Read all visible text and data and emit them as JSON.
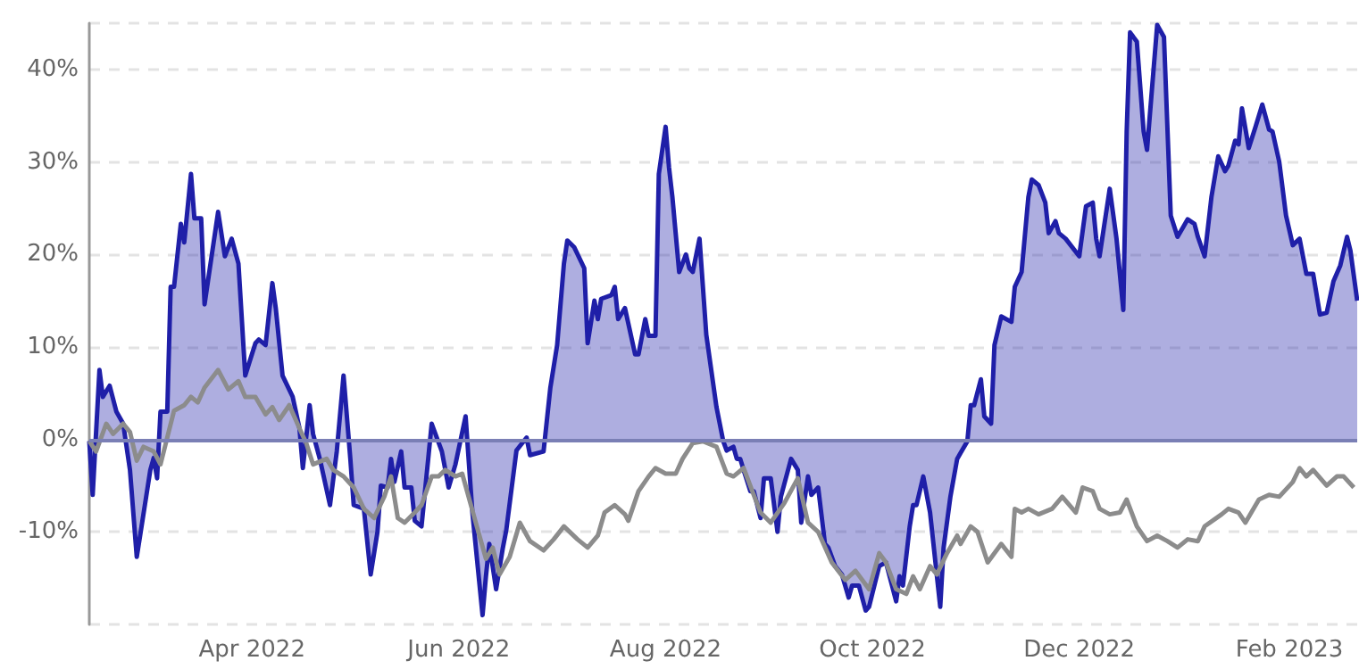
{
  "chart_data": {
    "type": "area",
    "xlim": [
      "2022-02-12",
      "2023-02-21"
    ],
    "xticks": [
      {
        "value": "2022-04-01",
        "label": "Apr 2022"
      },
      {
        "value": "2022-06-01",
        "label": "Jun 2022"
      },
      {
        "value": "2022-08-01",
        "label": "Aug 2022"
      },
      {
        "value": "2022-10-01",
        "label": "Oct 2022"
      },
      {
        "value": "2022-12-01",
        "label": "Dec 2022"
      },
      {
        "value": "2023-02-01",
        "label": "Feb 2023"
      }
    ],
    "ylim": [
      -20,
      45
    ],
    "yticks": [
      {
        "value": -20,
        "label": null
      },
      {
        "value": -10,
        "label": "-10%"
      },
      {
        "value": 0,
        "label": "0%"
      },
      {
        "value": 10,
        "label": "10%"
      },
      {
        "value": 20,
        "label": "20%"
      },
      {
        "value": 30,
        "label": "30%"
      },
      {
        "value": 40,
        "label": "40%"
      },
      {
        "value": 45,
        "label": null
      }
    ],
    "grid": "y",
    "ref_lines": [
      {
        "axis": "y",
        "value": 0,
        "color": "#7a7fb5"
      }
    ],
    "series": [
      {
        "color": "#1f1fa8",
        "x": [
          "2022-02-12",
          "2022-02-13",
          "2022-02-15",
          "2022-02-16",
          "2022-02-18",
          "2022-02-20",
          "2022-02-22",
          "2022-02-24",
          "2022-02-26",
          "2022-02-27",
          "2022-03-02",
          "2022-03-03",
          "2022-03-04",
          "2022-03-05",
          "2022-03-07",
          "2022-03-08",
          "2022-03-09",
          "2022-03-11",
          "2022-03-12",
          "2022-03-14",
          "2022-03-15",
          "2022-03-17",
          "2022-03-18",
          "2022-03-22",
          "2022-03-24",
          "2022-03-26",
          "2022-03-28",
          "2022-03-30",
          "2022-04-02",
          "2022-04-03",
          "2022-04-05",
          "2022-04-07",
          "2022-04-08",
          "2022-04-10",
          "2022-04-13",
          "2022-04-15",
          "2022-04-16",
          "2022-04-18",
          "2022-04-19",
          "2022-04-21",
          "2022-04-24",
          "2022-04-26",
          "2022-04-28",
          "2022-04-30",
          "2022-05-01",
          "2022-05-04",
          "2022-05-06",
          "2022-05-08",
          "2022-05-09",
          "2022-05-11",
          "2022-05-12",
          "2022-05-13",
          "2022-05-15",
          "2022-05-16",
          "2022-05-18",
          "2022-05-19",
          "2022-05-21",
          "2022-05-24",
          "2022-05-27",
          "2022-05-29",
          "2022-05-31",
          "2022-06-03",
          "2022-06-05",
          "2022-06-08",
          "2022-06-09",
          "2022-06-10",
          "2022-06-12",
          "2022-06-14",
          "2022-06-15",
          "2022-06-18",
          "2022-06-21",
          "2022-06-22",
          "2022-06-26",
          "2022-06-28",
          "2022-06-30",
          "2022-07-02",
          "2022-07-03",
          "2022-07-05",
          "2022-07-08",
          "2022-07-09",
          "2022-07-11",
          "2022-07-12",
          "2022-07-13",
          "2022-07-16",
          "2022-07-17",
          "2022-07-18",
          "2022-07-20",
          "2022-07-23",
          "2022-07-24",
          "2022-07-26",
          "2022-07-27",
          "2022-07-29",
          "2022-07-30",
          "2022-08-01",
          "2022-08-02",
          "2022-08-03",
          "2022-08-05",
          "2022-08-07",
          "2022-08-08",
          "2022-08-09",
          "2022-08-11",
          "2022-08-13",
          "2022-08-16",
          "2022-08-18",
          "2022-08-19",
          "2022-08-21",
          "2022-08-22",
          "2022-08-23",
          "2022-08-24",
          "2022-08-26",
          "2022-08-27",
          "2022-08-29",
          "2022-08-30",
          "2022-09-01",
          "2022-09-03",
          "2022-09-04",
          "2022-09-07",
          "2022-09-09",
          "2022-09-10",
          "2022-09-12",
          "2022-09-13",
          "2022-09-15",
          "2022-09-17",
          "2022-09-18",
          "2022-09-20",
          "2022-09-22",
          "2022-09-24",
          "2022-09-25",
          "2022-09-27",
          "2022-09-29",
          "2022-09-30",
          "2022-10-03",
          "2022-10-05",
          "2022-10-08",
          "2022-10-09",
          "2022-10-10",
          "2022-10-12",
          "2022-10-13",
          "2022-10-14",
          "2022-10-16",
          "2022-10-18",
          "2022-10-21",
          "2022-10-22",
          "2022-10-24",
          "2022-10-26",
          "2022-10-29",
          "2022-10-30",
          "2022-10-31",
          "2022-11-02",
          "2022-11-03",
          "2022-11-05",
          "2022-11-06",
          "2022-11-08",
          "2022-11-11",
          "2022-11-12",
          "2022-11-14",
          "2022-11-16",
          "2022-11-17",
          "2022-11-19",
          "2022-11-21",
          "2022-11-22",
          "2022-11-24",
          "2022-11-25",
          "2022-11-27",
          "2022-12-01",
          "2022-12-03",
          "2022-12-05",
          "2022-12-06",
          "2022-12-07",
          "2022-12-10",
          "2022-12-12",
          "2022-12-14",
          "2022-12-15",
          "2022-12-16",
          "2022-12-18",
          "2022-12-20",
          "2022-12-21",
          "2022-12-24",
          "2022-12-26",
          "2022-12-28",
          "2022-12-30",
          "2023-01-02",
          "2023-01-04",
          "2023-01-05",
          "2023-01-07",
          "2023-01-09",
          "2023-01-11",
          "2023-01-13",
          "2023-01-14",
          "2023-01-16",
          "2023-01-17",
          "2023-01-18",
          "2023-01-20",
          "2023-01-22",
          "2023-01-24",
          "2023-01-26",
          "2023-01-27",
          "2023-01-29",
          "2023-01-31",
          "2023-02-02",
          "2023-02-04",
          "2023-02-06",
          "2023-02-08",
          "2023-02-10",
          "2023-02-12",
          "2023-02-14",
          "2023-02-16",
          "2023-02-18",
          "2023-02-19",
          "2023-02-21"
        ],
        "values": [
          -0.2,
          -6,
          7.5,
          4.6,
          5.8,
          3,
          1.7,
          -3.3,
          -12.7,
          -10.4,
          -3.3,
          -2,
          -4.2,
          3,
          3,
          16.5,
          16.5,
          23.3,
          21.3,
          28.7,
          23.9,
          23.9,
          14.6,
          24.6,
          19.8,
          21.7,
          19,
          6.9,
          10.4,
          10.8,
          10.2,
          16.9,
          14.2,
          6.9,
          4.6,
          1.2,
          -3.1,
          3.7,
          0.6,
          -2.1,
          -7.1,
          -1.3,
          6.9,
          -2.1,
          -7.1,
          -7.5,
          -14.6,
          -10,
          -5,
          -5.2,
          -2.1,
          -4.6,
          -1.3,
          -5.2,
          -5.2,
          -8.8,
          -9.4,
          1.7,
          -1.3,
          -5.2,
          -2.7,
          2.5,
          -7.9,
          -19,
          -14.8,
          -11.3,
          -16.2,
          -11.7,
          -9.8,
          -1.2,
          0.2,
          -1.7,
          -1.3,
          5.6,
          10.2,
          19,
          21.5,
          20.8,
          18.5,
          10.4,
          15,
          13,
          15.2,
          15.6,
          16.5,
          13,
          14.2,
          9.2,
          9.2,
          13,
          11.2,
          11.2,
          28.7,
          33.8,
          29.4,
          26.2,
          18.1,
          20,
          18.5,
          18.1,
          21.7,
          11.3,
          3.5,
          -0.2,
          -1.2,
          -0.8,
          -2.1,
          -2.1,
          -3.3,
          -5.6,
          -5.6,
          -8.5,
          -4.2,
          -4.2,
          -10,
          -6.2,
          -2.1,
          -3.3,
          -9,
          -4,
          -6,
          -5.2,
          -11.3,
          -11.7,
          -13.7,
          -14.6,
          -17.1,
          -15.8,
          -15.8,
          -18.5,
          -18.1,
          -13.7,
          -13.3,
          -17.5,
          -14.8,
          -15.8,
          -9.4,
          -7.1,
          -7.1,
          -4,
          -7.9,
          -18.1,
          -11.7,
          -6.2,
          -2.1,
          -0.2,
          3.7,
          3.7,
          6.5,
          2.5,
          1.7,
          10.2,
          13.3,
          12.7,
          16.5,
          18.1,
          26.2,
          28.1,
          27.5,
          25.6,
          22.3,
          23.6,
          22.3,
          21.7,
          19.8,
          25.2,
          25.6,
          21.7,
          19.8,
          27.1,
          21.7,
          14,
          33.3,
          44,
          43,
          33.3,
          31.3,
          44.8,
          43.5,
          24.2,
          21.9,
          23.8,
          23.3,
          21.9,
          19.8,
          26.2,
          30.6,
          29,
          29.6,
          32.3,
          31.9,
          35.8,
          31.5,
          33.8,
          36.2,
          33.5,
          33.3,
          30,
          24.2,
          21,
          21.7,
          17.9,
          17.9,
          13.5,
          13.7,
          17.1,
          18.8,
          21.9,
          20.4,
          15
        ]
      },
      {
        "type": "line",
        "color": "#8c8c8c",
        "x": [
          "2022-02-12",
          "2022-02-14",
          "2022-02-17",
          "2022-02-19",
          "2022-02-22",
          "2022-02-24",
          "2022-02-26",
          "2022-02-28",
          "2022-03-03",
          "2022-03-05",
          "2022-03-09",
          "2022-03-12",
          "2022-03-14",
          "2022-03-16",
          "2022-03-18",
          "2022-03-22",
          "2022-03-25",
          "2022-03-28",
          "2022-03-30",
          "2022-04-02",
          "2022-04-05",
          "2022-04-07",
          "2022-04-09",
          "2022-04-12",
          "2022-04-15",
          "2022-04-17",
          "2022-04-19",
          "2022-04-23",
          "2022-04-25",
          "2022-04-28",
          "2022-05-01",
          "2022-05-04",
          "2022-05-07",
          "2022-05-10",
          "2022-05-12",
          "2022-05-14",
          "2022-05-16",
          "2022-05-19",
          "2022-05-21",
          "2022-05-24",
          "2022-05-26",
          "2022-05-28",
          "2022-05-31",
          "2022-06-02",
          "2022-06-06",
          "2022-06-09",
          "2022-06-11",
          "2022-06-13",
          "2022-06-16",
          "2022-06-19",
          "2022-06-22",
          "2022-06-26",
          "2022-06-29",
          "2022-07-02",
          "2022-07-06",
          "2022-07-09",
          "2022-07-12",
          "2022-07-14",
          "2022-07-17",
          "2022-07-20",
          "2022-07-21",
          "2022-07-24",
          "2022-07-27",
          "2022-07-29",
          "2022-08-01",
          "2022-08-04",
          "2022-08-06",
          "2022-08-09",
          "2022-08-12",
          "2022-08-16",
          "2022-08-19",
          "2022-08-21",
          "2022-08-24",
          "2022-08-27",
          "2022-08-29",
          "2022-09-01",
          "2022-09-05",
          "2022-09-09",
          "2022-09-12",
          "2022-09-15",
          "2022-09-19",
          "2022-09-23",
          "2022-09-26",
          "2022-09-30",
          "2022-10-03",
          "2022-10-05",
          "2022-10-08",
          "2022-10-11",
          "2022-10-13",
          "2022-10-15",
          "2022-10-18",
          "2022-10-20",
          "2022-10-23",
          "2022-10-26",
          "2022-10-27",
          "2022-10-30",
          "2022-11-01",
          "2022-11-04",
          "2022-11-08",
          "2022-11-11",
          "2022-11-12",
          "2022-11-14",
          "2022-11-16",
          "2022-11-19",
          "2022-11-23",
          "2022-11-26",
          "2022-11-30",
          "2022-12-02",
          "2022-12-05",
          "2022-12-07",
          "2022-12-10",
          "2022-12-13",
          "2022-12-15",
          "2022-12-18",
          "2022-12-21",
          "2022-12-24",
          "2022-12-27",
          "2022-12-30",
          "2023-01-02",
          "2023-01-05",
          "2023-01-07",
          "2023-01-12",
          "2023-01-14",
          "2023-01-17",
          "2023-01-19",
          "2023-01-23",
          "2023-01-26",
          "2023-01-29",
          "2023-02-02",
          "2023-02-04",
          "2023-02-06",
          "2023-02-08",
          "2023-02-12",
          "2023-02-15",
          "2023-02-17",
          "2023-02-20"
        ],
        "values": [
          -0.2,
          -1.3,
          1.7,
          0.6,
          1.7,
          0.8,
          -2.3,
          -0.8,
          -1.3,
          -2.7,
          3.1,
          3.7,
          4.6,
          4,
          5.6,
          7.5,
          5.4,
          6.3,
          4.6,
          4.6,
          2.7,
          3.5,
          2.1,
          3.7,
          1.2,
          -0.4,
          -2.7,
          -2.1,
          -3.3,
          -4,
          -5.2,
          -7.5,
          -8.5,
          -6.2,
          -4,
          -8.5,
          -9,
          -7.9,
          -7.1,
          -4,
          -4,
          -3.3,
          -4,
          -3.7,
          -9,
          -12.9,
          -11.7,
          -14.6,
          -12.7,
          -9,
          -11,
          -12,
          -10.8,
          -9.4,
          -10.8,
          -11.7,
          -10.4,
          -7.9,
          -7.1,
          -8.1,
          -8.8,
          -5.6,
          -4,
          -3.1,
          -3.7,
          -3.7,
          -2.1,
          -0.4,
          -0.2,
          -0.8,
          -3.7,
          -4,
          -3.1,
          -6,
          -7.9,
          -9,
          -6.9,
          -4.2,
          -9,
          -10,
          -13.3,
          -15.2,
          -14.2,
          -16.2,
          -12.3,
          -13.3,
          -16.2,
          -16.7,
          -14.8,
          -16.2,
          -13.7,
          -14.6,
          -12.3,
          -10.4,
          -11.3,
          -9.4,
          -10,
          -13.3,
          -11.3,
          -12.7,
          -7.5,
          -7.9,
          -7.5,
          -8.1,
          -7.5,
          -6.2,
          -7.9,
          -5.2,
          -5.6,
          -7.5,
          -8.1,
          -7.9,
          -6.5,
          -9.4,
          -11,
          -10.4,
          -11,
          -11.7,
          -10.8,
          -11,
          -9.4,
          -8.1,
          -7.5,
          -7.9,
          -9,
          -6.5,
          -6,
          -6.2,
          -4.6,
          -3.1,
          -4,
          -3.3,
          -5,
          -4,
          -4,
          -5.2
        ]
      }
    ]
  }
}
